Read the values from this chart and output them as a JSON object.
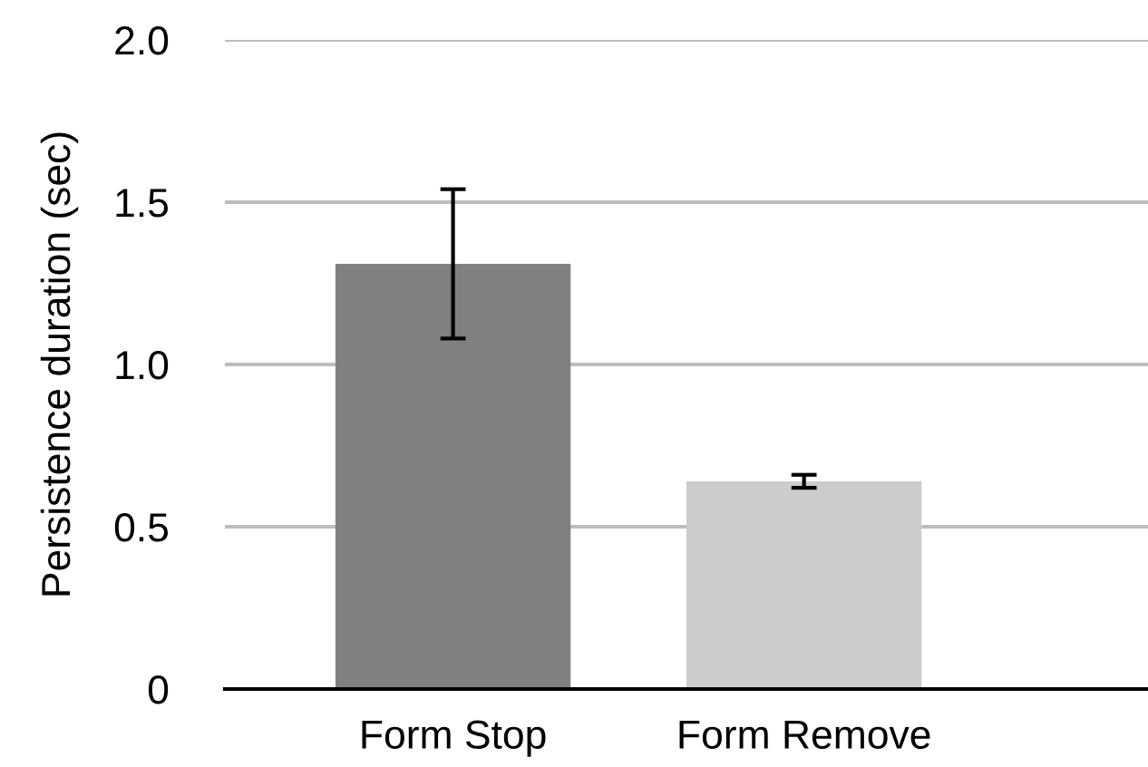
{
  "chart_data": {
    "type": "bar",
    "ylabel": "Persistence duration (sec)",
    "categories": [
      "Form Stop",
      "Form Remove"
    ],
    "values": [
      1.31,
      0.64
    ],
    "colors": [
      "#808080",
      "#cbcccb"
    ],
    "errors": [
      0.23,
      0.02
    ],
    "ylim": [
      0,
      2.0
    ],
    "yticks": [
      0,
      {
        "value": 0.5,
        "label": "0.5"
      },
      {
        "value": 1.0,
        "label": "1.0"
      },
      {
        "value": 1.5,
        "label": "1.5"
      },
      {
        "value": 2.0,
        "label": "2.0"
      }
    ],
    "grid": "y"
  }
}
